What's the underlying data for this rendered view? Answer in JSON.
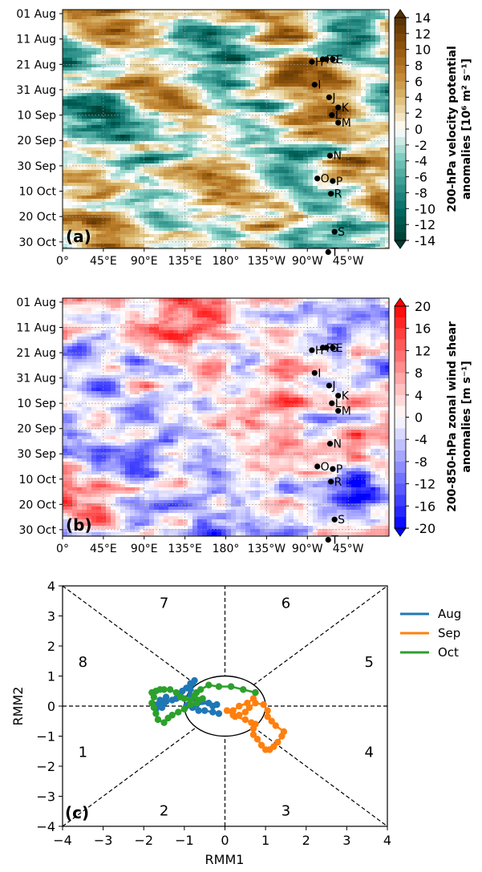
{
  "chart_data": [
    {
      "type": "heatmap",
      "panel_label": "(a)",
      "colorbar_label_line1": "200-hPa velocity potential",
      "colorbar_label_line2": "anomalies [10⁶ m² s⁻¹]",
      "colorbar_ticks": [
        "14",
        "12",
        "10",
        "8",
        "6",
        "4",
        "2",
        "0",
        "-2",
        "-4",
        "-6",
        "-8",
        "-10",
        "-12",
        "-14"
      ],
      "colorbar_range": [
        -14,
        14
      ],
      "colormap": "BrBG_r",
      "x_ticks": [
        "0°",
        "45°E",
        "90°E",
        "135°E",
        "180°",
        "135°W",
        "90°W",
        "45°W"
      ],
      "y_ticks": [
        "01 Aug",
        "11 Aug",
        "21 Aug",
        "31 Aug",
        "10 Sep",
        "20 Sep",
        "30 Sep",
        "10 Oct",
        "20 Oct",
        "30 Oct"
      ],
      "markers": [
        {
          "label": "H",
          "lon_east": 275,
          "day": 19
        },
        {
          "label": "I",
          "lon_east": 278,
          "day": 28
        },
        {
          "label": "F",
          "lon_east": 287,
          "day": 18
        },
        {
          "label": "G",
          "lon_east": 291,
          "day": 18
        },
        {
          "label": "E",
          "lon_east": 298,
          "day": 18
        },
        {
          "label": "J",
          "lon_east": 294,
          "day": 33
        },
        {
          "label": "K",
          "lon_east": 304,
          "day": 37
        },
        {
          "label": "L",
          "lon_east": 297,
          "day": 40
        },
        {
          "label": "M",
          "lon_east": 304,
          "day": 43
        },
        {
          "label": "N",
          "lon_east": 295,
          "day": 56
        },
        {
          "label": "O",
          "lon_east": 281,
          "day": 65
        },
        {
          "label": "P",
          "lon_east": 298,
          "day": 66
        },
        {
          "label": "R",
          "lon_east": 296,
          "day": 71
        },
        {
          "label": "S",
          "lon_east": 300,
          "day": 86
        },
        {
          "label": "T",
          "lon_east": 293,
          "day": 94
        }
      ]
    },
    {
      "type": "heatmap",
      "panel_label": "(b)",
      "colorbar_label_line1": "200-850-hPa zonal wind shear",
      "colorbar_label_line2": "anomalies [m s⁻¹]",
      "colorbar_ticks": [
        "20",
        "16",
        "12",
        "8",
        "4",
        "0",
        "-4",
        "-8",
        "-12",
        "-16",
        "-20"
      ],
      "colorbar_range": [
        -20,
        20
      ],
      "colormap": "bwr",
      "x_ticks": [
        "0°",
        "45°E",
        "90°E",
        "135°E",
        "180°",
        "135°W",
        "90°W",
        "45°W"
      ],
      "y_ticks": [
        "01 Aug",
        "11 Aug",
        "21 Aug",
        "31 Aug",
        "10 Sep",
        "20 Sep",
        "30 Sep",
        "10 Oct",
        "20 Oct",
        "30 Oct"
      ],
      "markers": [
        {
          "label": "H",
          "lon_east": 275,
          "day": 19
        },
        {
          "label": "I",
          "lon_east": 278,
          "day": 28
        },
        {
          "label": "F",
          "lon_east": 287,
          "day": 18
        },
        {
          "label": "G",
          "lon_east": 291,
          "day": 18
        },
        {
          "label": "E",
          "lon_east": 298,
          "day": 18
        },
        {
          "label": "J",
          "lon_east": 294,
          "day": 33
        },
        {
          "label": "K",
          "lon_east": 304,
          "day": 37
        },
        {
          "label": "L",
          "lon_east": 297,
          "day": 40
        },
        {
          "label": "M",
          "lon_east": 304,
          "day": 43
        },
        {
          "label": "N",
          "lon_east": 295,
          "day": 56
        },
        {
          "label": "O",
          "lon_east": 281,
          "day": 65
        },
        {
          "label": "P",
          "lon_east": 298,
          "day": 66
        },
        {
          "label": "R",
          "lon_east": 296,
          "day": 71
        },
        {
          "label": "S",
          "lon_east": 300,
          "day": 86
        },
        {
          "label": "T",
          "lon_east": 293,
          "day": 94
        }
      ]
    },
    {
      "type": "line",
      "panel_label": "(c)",
      "xlabel": "RMM1",
      "ylabel": "RMM2",
      "xlim": [
        -4,
        4
      ],
      "ylim": [
        -4,
        4
      ],
      "x_ticks": [
        "−4",
        "−3",
        "−2",
        "−1",
        "0",
        "1",
        "2",
        "3",
        "4"
      ],
      "y_ticks": [
        "4",
        "3",
        "2",
        "1",
        "0",
        "−1",
        "−2",
        "−3",
        "−4"
      ],
      "phase_labels": [
        {
          "text": "1",
          "x": -3.5,
          "y": -1.5
        },
        {
          "text": "2",
          "x": -1.5,
          "y": -3.45
        },
        {
          "text": "3",
          "x": 1.5,
          "y": -3.45
        },
        {
          "text": "4",
          "x": 3.55,
          "y": -1.5
        },
        {
          "text": "5",
          "x": 3.55,
          "y": 1.5
        },
        {
          "text": "6",
          "x": 1.5,
          "y": 3.45
        },
        {
          "text": "7",
          "x": -1.5,
          "y": 3.45
        },
        {
          "text": "8",
          "x": -3.5,
          "y": 1.5
        }
      ],
      "series": [
        {
          "name": "Aug",
          "color": "#1f77b4",
          "points": [
            [
              -0.15,
              -0.25
            ],
            [
              -0.3,
              -0.2
            ],
            [
              -0.5,
              -0.15
            ],
            [
              -0.65,
              -0.15
            ],
            [
              -0.8,
              -0.05
            ],
            [
              -0.9,
              0.05
            ],
            [
              -0.95,
              0.0
            ],
            [
              -0.7,
              0.05
            ],
            [
              -0.4,
              0.1
            ],
            [
              -0.3,
              0.0
            ],
            [
              -0.2,
              0.05
            ],
            [
              -0.55,
              0.15
            ],
            [
              -0.75,
              0.25
            ],
            [
              -0.85,
              0.35
            ],
            [
              -0.85,
              0.55
            ],
            [
              -0.8,
              0.75
            ],
            [
              -0.75,
              0.85
            ],
            [
              -0.85,
              0.75
            ],
            [
              -0.95,
              0.6
            ],
            [
              -1.05,
              0.5
            ],
            [
              -1.1,
              0.35
            ],
            [
              -1.2,
              0.25
            ],
            [
              -1.3,
              0.2
            ],
            [
              -1.45,
              0.15
            ],
            [
              -1.5,
              0.1
            ],
            [
              -1.55,
              -0.05
            ],
            [
              -1.6,
              0.05
            ],
            [
              -1.7,
              -0.1
            ],
            [
              -1.75,
              0.05
            ],
            [
              -1.6,
              0.2
            ],
            [
              -1.45,
              0.3
            ]
          ]
        },
        {
          "name": "Sep",
          "color": "#ff7f0e",
          "points": [
            [
              0.05,
              -0.15
            ],
            [
              0.25,
              -0.35
            ],
            [
              0.5,
              -0.45
            ],
            [
              0.65,
              -0.55
            ],
            [
              0.75,
              -0.6
            ],
            [
              0.7,
              -0.75
            ],
            [
              0.7,
              -0.95
            ],
            [
              0.8,
              -1.1
            ],
            [
              0.9,
              -1.3
            ],
            [
              1.0,
              -1.45
            ],
            [
              1.1,
              -1.45
            ],
            [
              1.2,
              -1.35
            ],
            [
              1.3,
              -1.2
            ],
            [
              1.4,
              -1.0
            ],
            [
              1.45,
              -0.85
            ],
            [
              1.25,
              -0.65
            ],
            [
              1.15,
              -0.5
            ],
            [
              1.05,
              -0.35
            ],
            [
              1.05,
              -0.15
            ],
            [
              0.95,
              0.05
            ],
            [
              0.75,
              0.1
            ],
            [
              0.6,
              -0.05
            ],
            [
              0.5,
              -0.2
            ],
            [
              0.35,
              -0.3
            ],
            [
              0.2,
              -0.3
            ],
            [
              0.2,
              -0.15
            ],
            [
              0.35,
              0.0
            ],
            [
              0.55,
              0.1
            ],
            [
              0.7,
              0.25
            ],
            [
              0.75,
              0.45
            ]
          ]
        },
        {
          "name": "Oct",
          "color": "#2ca02c",
          "points": [
            [
              0.75,
              0.45
            ],
            [
              0.45,
              0.55
            ],
            [
              0.15,
              0.65
            ],
            [
              -0.15,
              0.65
            ],
            [
              -0.4,
              0.7
            ],
            [
              -0.6,
              0.55
            ],
            [
              -0.7,
              0.45
            ],
            [
              -0.75,
              0.35
            ],
            [
              -0.85,
              0.2
            ],
            [
              -1.0,
              0.25
            ],
            [
              -1.1,
              0.3
            ],
            [
              -1.2,
              0.45
            ],
            [
              -1.35,
              0.55
            ],
            [
              -1.5,
              0.55
            ],
            [
              -1.6,
              0.55
            ],
            [
              -1.7,
              0.5
            ],
            [
              -1.8,
              0.45
            ],
            [
              -1.75,
              0.3
            ],
            [
              -1.8,
              0.1
            ],
            [
              -1.75,
              -0.05
            ],
            [
              -1.7,
              -0.25
            ],
            [
              -1.65,
              -0.45
            ],
            [
              -1.5,
              -0.55
            ],
            [
              -1.4,
              -0.4
            ],
            [
              -1.3,
              -0.3
            ],
            [
              -1.15,
              -0.2
            ],
            [
              -1.0,
              -0.1
            ],
            [
              -0.85,
              0.05
            ],
            [
              -0.7,
              0.1
            ],
            [
              -0.65,
              0.2
            ],
            [
              -0.55,
              0.25
            ]
          ]
        }
      ]
    }
  ]
}
